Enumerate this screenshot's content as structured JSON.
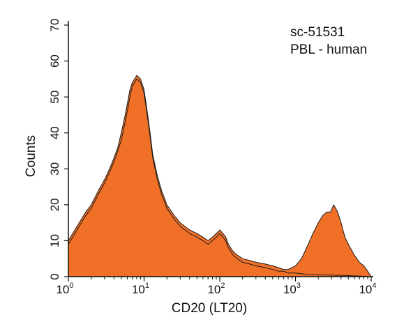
{
  "chart_data": {
    "type": "area",
    "xlabel": "CD20 (LT20)",
    "ylabel": "Counts",
    "x_scale": "log",
    "xlim": [
      1,
      10000
    ],
    "ylim": [
      0,
      70
    ],
    "x_ticks": [
      {
        "base": "10",
        "exp": "0",
        "value": 1
      },
      {
        "base": "10",
        "exp": "1",
        "value": 10
      },
      {
        "base": "10",
        "exp": "2",
        "value": 100
      },
      {
        "base": "10",
        "exp": "3",
        "value": 1000
      },
      {
        "base": "10",
        "exp": "4",
        "value": 10000
      }
    ],
    "y_ticks": [
      "0",
      "10",
      "20",
      "30",
      "40",
      "50",
      "60",
      "70"
    ],
    "annotations": [
      "sc-51531",
      "PBL - human"
    ],
    "fill_color": "#f07028",
    "line_color": "#1a1a1a",
    "series": [
      {
        "fill": true,
        "x": [
          1,
          1.3,
          1.7,
          2,
          2.5,
          3,
          3.5,
          4,
          4.5,
          5,
          5.5,
          6,
          6.5,
          7,
          7.5,
          8,
          9,
          10,
          11,
          12,
          13,
          15,
          17,
          20,
          25,
          30,
          40,
          50,
          60,
          70,
          80,
          90,
          100,
          110,
          120,
          130,
          150,
          170,
          200,
          250,
          300,
          400,
          500,
          600,
          700,
          800,
          900,
          1000,
          1200,
          1400,
          1700,
          2000,
          2300,
          2600,
          2900,
          3200,
          3600,
          4000,
          4500,
          5000,
          6000,
          7000,
          8000,
          9000,
          10000
        ],
        "values": [
          10,
          14,
          18,
          20,
          24,
          27,
          30,
          33,
          36,
          40,
          44,
          48,
          52,
          54,
          55,
          56,
          55,
          52,
          46,
          40,
          34,
          28,
          24,
          20,
          17,
          15,
          13,
          12,
          11,
          10,
          11,
          12,
          13,
          12,
          11,
          9,
          7,
          6,
          5,
          4.5,
          4,
          3.5,
          3,
          2.5,
          2,
          2,
          2.5,
          3,
          5,
          8,
          12,
          15,
          17,
          18,
          18,
          20,
          18,
          15,
          11,
          9,
          6,
          4,
          3,
          1.5,
          0
        ]
      },
      {
        "fill": false,
        "x": [
          1,
          1.3,
          1.7,
          2,
          2.5,
          3,
          3.5,
          4,
          4.5,
          5,
          5.5,
          6,
          6.5,
          7,
          7.5,
          8,
          9,
          10,
          11,
          12,
          13,
          15,
          17,
          20,
          25,
          30,
          40,
          50,
          60,
          70,
          80,
          90,
          100,
          110,
          120,
          130,
          150,
          170,
          200,
          250,
          300,
          400,
          500,
          600,
          700,
          800,
          900,
          1000,
          1200,
          1500,
          2000,
          3000,
          5000,
          10000
        ],
        "values": [
          9,
          13,
          17,
          19,
          23,
          26,
          29,
          32,
          35,
          38,
          42,
          46,
          50,
          53,
          54,
          55,
          54,
          51,
          45,
          39,
          33,
          27,
          23,
          19,
          16,
          14,
          12,
          11,
          10,
          9,
          10,
          11,
          12,
          11,
          10,
          8,
          6,
          5,
          4,
          3.5,
          3,
          2.5,
          2,
          1.5,
          1.5,
          1,
          1,
          1,
          0.8,
          0.6,
          0.5,
          0.4,
          0.3,
          0
        ]
      }
    ]
  }
}
